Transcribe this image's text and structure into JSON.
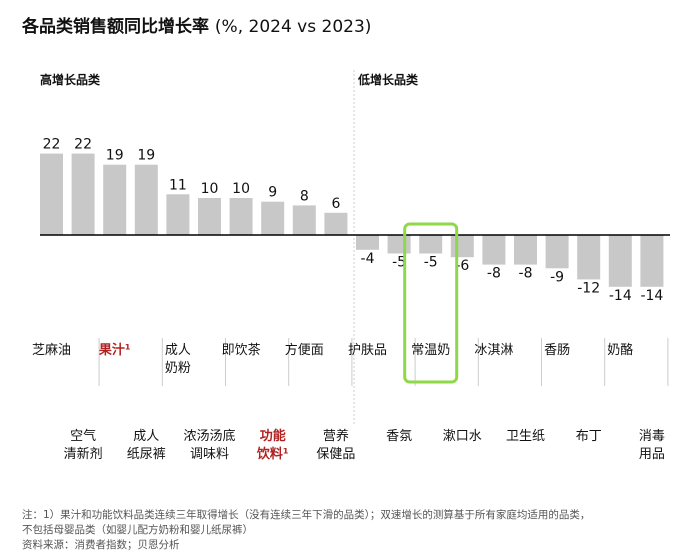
{
  "title": "各品类销售额同比增长率",
  "title_unit": "(%, 2024 vs 2023)",
  "groups": {
    "high": "高增长品类",
    "low": "低增长品类"
  },
  "chart_data": {
    "type": "bar",
    "title": "各品类销售额同比增长率 (%, 2024 vs 2023)",
    "categories": [
      "芝麻油",
      "空气清新剂",
      "果汁¹",
      "成人纸尿裤",
      "成人奶粉",
      "浓汤汤底调味料",
      "即饮茶",
      "功能饮料¹",
      "方便面",
      "营养保健品",
      "护肤品",
      "香氛",
      "常温奶",
      "漱口水",
      "冰淇淋",
      "卫生纸",
      "香肠",
      "布丁",
      "奶酪",
      "消毒用品"
    ],
    "labels": [
      [
        "芝麻油"
      ],
      [
        "空气",
        "清新剂"
      ],
      [
        "果汁¹"
      ],
      [
        "成人",
        "纸尿裤"
      ],
      [
        "成人",
        "奶粉"
      ],
      [
        "浓汤汤底",
        "调味料"
      ],
      [
        "即饮茶"
      ],
      [
        "功能",
        "饮料¹"
      ],
      [
        "方便面"
      ],
      [
        "营养",
        "保健品"
      ],
      [
        "护肤品"
      ],
      [
        "香氛"
      ],
      [
        "常温奶"
      ],
      [
        "漱口水"
      ],
      [
        "冰淇淋"
      ],
      [
        "卫生纸"
      ],
      [
        "香肠"
      ],
      [
        "布丁"
      ],
      [
        "奶酪"
      ],
      [
        "消毒",
        "用品"
      ]
    ],
    "values": [
      22,
      22,
      19,
      19,
      11,
      10,
      10,
      9,
      8,
      6,
      -4,
      -5,
      -5,
      -6,
      -8,
      -8,
      -9,
      -12,
      -14,
      -14
    ],
    "highlight_labels": [
      "果汁¹",
      "功能饮料¹"
    ],
    "highlight_box_category": "常温奶",
    "ylim": [
      -14,
      22
    ],
    "grid": false,
    "colors": {
      "bar": "#c8c8c8",
      "highlight_text": "#b22222",
      "highlight_box": "#8ed84a",
      "axis": "#000000",
      "separator": "#cccccc"
    }
  },
  "footnotes": [
    "注：1）果汁和功能饮料品类连续三年取得增长（没有连续三年下滑的品类）；双速增长的测算基于所有家庭均适用的品类，",
    "不包括母婴品类（如婴儿配方奶粉和婴儿纸尿裤）",
    "资料来源：消费者指数；贝恩分析"
  ]
}
